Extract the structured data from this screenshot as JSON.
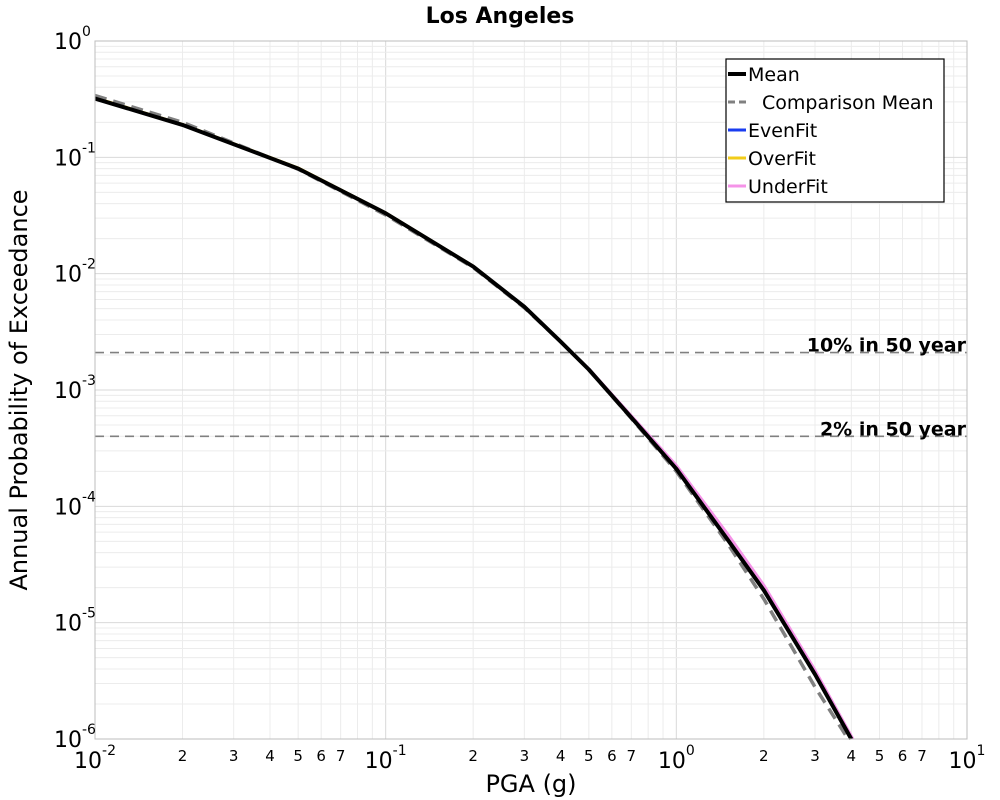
{
  "chart_data": {
    "type": "line",
    "title": "Los Angeles",
    "xlabel": "PGA (g)",
    "ylabel": "Annual Probability of Exceedance",
    "xscale": "log",
    "yscale": "log",
    "xlim": [
      0.01,
      10
    ],
    "ylim": [
      1e-06,
      1
    ],
    "grid": true,
    "legend_position": "top-right",
    "x_major_ticks": [
      {
        "base": "10",
        "exp": "-2"
      },
      {
        "base": "10",
        "exp": "-1"
      },
      {
        "base": "10",
        "exp": "0"
      },
      {
        "base": "10",
        "exp": "1"
      }
    ],
    "y_major_ticks": [
      {
        "base": "10",
        "exp": "0"
      },
      {
        "base": "10",
        "exp": "-1"
      },
      {
        "base": "10",
        "exp": "-2"
      },
      {
        "base": "10",
        "exp": "-3"
      },
      {
        "base": "10",
        "exp": "-4"
      },
      {
        "base": "10",
        "exp": "-5"
      },
      {
        "base": "10",
        "exp": "-6"
      }
    ],
    "x_minor_tick_labels": [
      "2",
      "3",
      "4",
      "5",
      "6",
      "7"
    ],
    "series": [
      {
        "name": "Mean",
        "color": "#000000",
        "style": "solid",
        "x": [
          0.01,
          0.02,
          0.05,
          0.1,
          0.2,
          0.3,
          0.4,
          0.5,
          0.7,
          1.0,
          1.5,
          2.0,
          3.0,
          4.0
        ],
        "y": [
          0.32,
          0.19,
          0.08,
          0.033,
          0.0115,
          0.0052,
          0.0026,
          0.0015,
          0.00058,
          0.00021,
          5.2e-05,
          1.9e-05,
          3.6e-06,
          1e-06
        ]
      },
      {
        "name": "Comparison Mean",
        "color": "#808080",
        "style": "dashed",
        "x": [
          0.01,
          0.02,
          0.05,
          0.1,
          0.2,
          0.3,
          0.4,
          0.5,
          0.7,
          1.0,
          1.5,
          2.0,
          3.0,
          3.9
        ],
        "y": [
          0.34,
          0.2,
          0.079,
          0.032,
          0.0113,
          0.0051,
          0.0026,
          0.0015,
          0.00057,
          0.0002,
          4.8e-05,
          1.6e-05,
          2.8e-06,
          1e-06
        ]
      },
      {
        "name": "EvenFit",
        "color": "#1a3cf0",
        "style": "solid",
        "x": [
          0.01,
          0.02,
          0.05,
          0.1,
          0.2,
          0.3,
          0.4,
          0.5,
          0.7,
          1.0,
          1.5,
          2.0,
          3.0,
          4.0
        ],
        "y": [
          0.32,
          0.19,
          0.08,
          0.033,
          0.0115,
          0.0052,
          0.0026,
          0.0015,
          0.00058,
          0.00021,
          5.2e-05,
          1.9e-05,
          3.6e-06,
          1e-06
        ]
      },
      {
        "name": "OverFit",
        "color": "#f2cc1a",
        "style": "solid",
        "x": [
          0.01,
          0.02,
          0.05,
          0.1,
          0.2,
          0.3,
          0.4,
          0.5,
          0.7,
          1.0,
          1.5,
          2.0,
          3.0,
          4.0
        ],
        "y": [
          0.325,
          0.192,
          0.081,
          0.0333,
          0.0116,
          0.0052,
          0.0026,
          0.0015,
          0.00058,
          0.00021,
          5.2e-05,
          1.9e-05,
          3.6e-06,
          1e-06
        ]
      },
      {
        "name": "UnderFit",
        "color": "#f593e8",
        "style": "solid",
        "x": [
          0.01,
          0.02,
          0.05,
          0.1,
          0.2,
          0.3,
          0.4,
          0.5,
          0.7,
          1.0,
          1.5,
          2.0,
          3.0,
          4.05
        ],
        "y": [
          0.32,
          0.19,
          0.08,
          0.033,
          0.0115,
          0.0052,
          0.0026,
          0.00152,
          0.0006,
          0.000225,
          5.8e-05,
          2.1e-05,
          3.9e-06,
          1e-06
        ]
      }
    ],
    "reference_lines": [
      {
        "label": "10% in 50 year",
        "y": 0.0021,
        "color": "#808080",
        "style": "dashed"
      },
      {
        "label": "2% in 50 year",
        "y": 0.0004,
        "color": "#808080",
        "style": "dashed"
      }
    ]
  }
}
